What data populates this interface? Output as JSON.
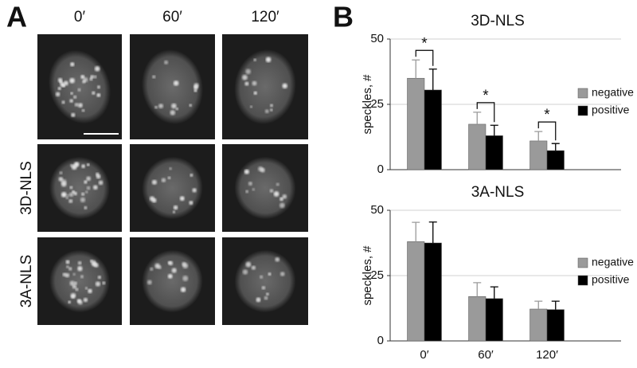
{
  "panel_a": {
    "label": "A",
    "columns": [
      "0′",
      "60′",
      "120′"
    ],
    "row_labels": [
      "3D-NLS",
      "3A-NLS"
    ]
  },
  "panel_b_label": "B",
  "chart_data": [
    {
      "type": "bar",
      "title": "3D-NLS",
      "ylabel": "speckles, #",
      "categories": [
        null,
        null,
        null
      ],
      "series": [
        {
          "name": "negative",
          "color": "#9a9a9a",
          "values": [
            35,
            17.4,
            11
          ],
          "errors": [
            7,
            4.6,
            3.6
          ]
        },
        {
          "name": "positive",
          "color": "#000000",
          "values": [
            30.5,
            13,
            7.3
          ],
          "errors": [
            8,
            4,
            2.7
          ]
        }
      ],
      "significance": [
        "*",
        "*",
        "*"
      ],
      "ylim": [
        0,
        50
      ],
      "yticks": [
        0,
        25,
        50
      ],
      "grid": true,
      "legend": "right"
    },
    {
      "type": "bar",
      "title": "3A-NLS",
      "ylabel": "speckles, #",
      "categories": [
        "0′",
        "60′",
        "120′"
      ],
      "series": [
        {
          "name": "negative",
          "color": "#9a9a9a",
          "values": [
            38,
            17,
            12.2
          ],
          "errors": [
            7.4,
            5.3,
            3
          ]
        },
        {
          "name": "positive",
          "color": "#000000",
          "values": [
            37.5,
            16.2,
            12
          ],
          "errors": [
            8,
            4.5,
            3.2
          ]
        }
      ],
      "ylim": [
        0,
        50
      ],
      "yticks": [
        0,
        25,
        50
      ],
      "grid": true,
      "legend": "right"
    }
  ]
}
